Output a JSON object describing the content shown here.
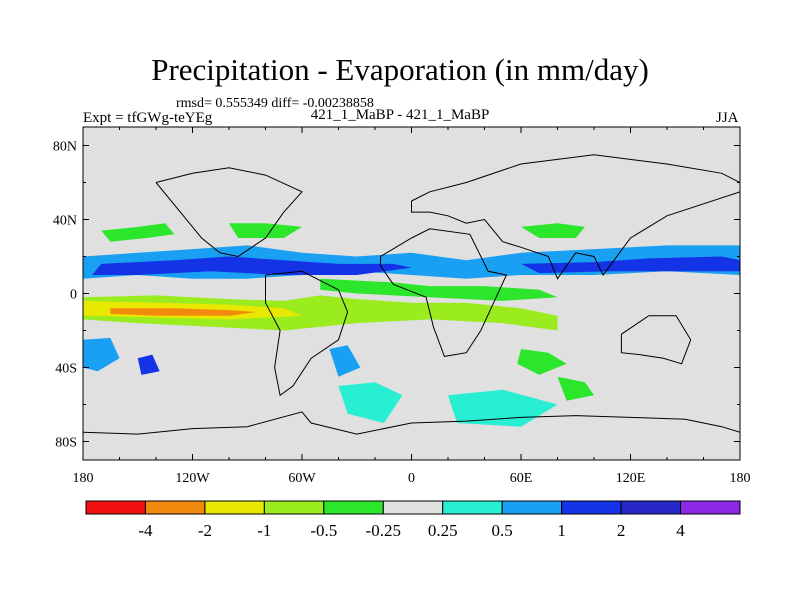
{
  "chart_data": {
    "type": "contour-map",
    "title": "Precipitation - Evaporation (in mm/day)",
    "stats_line": "rmsd= 0.555349 diff= -0.00238858",
    "experiment_label": "Expt = tfGWg-teYEg",
    "subtitle": "421_1_MaBP - 421_1_MaBP",
    "season": "JJA",
    "x_axis": {
      "range": [
        -180,
        180
      ],
      "tick_values": [
        -180,
        -120,
        -60,
        0,
        60,
        120,
        180
      ],
      "tick_labels": [
        "180",
        "120W",
        "60W",
        "0",
        "60E",
        "120E",
        "180"
      ]
    },
    "y_axis": {
      "range": [
        -90,
        90
      ],
      "tick_values": [
        80,
        40,
        0,
        -40,
        -80
      ],
      "tick_labels": [
        "80N",
        "40N",
        "0",
        "40S",
        "80S"
      ]
    },
    "background_color": "#e0e0e0",
    "colorbar": {
      "labels": [
        "-4",
        "-2",
        "-1",
        "-0.5",
        "-0.25",
        "0.25",
        "0.5",
        "1",
        "2",
        "4"
      ],
      "colors": [
        "#f20f0f",
        "#f28a0f",
        "#e8e800",
        "#9aec1e",
        "#2ce62c",
        "#e0e0e0",
        "#28eed2",
        "#1aa0f2",
        "#1432e6",
        "#2828c8",
        "#8c28e6"
      ]
    },
    "features": [
      {
        "name": "northern-blue-band",
        "color": "#1aa0f2",
        "points": [
          [
            -180,
            20
          ],
          [
            -150,
            22
          ],
          [
            -120,
            24
          ],
          [
            -90,
            26
          ],
          [
            -60,
            22
          ],
          [
            -30,
            20
          ],
          [
            0,
            22
          ],
          [
            30,
            18
          ],
          [
            60,
            22
          ],
          [
            100,
            24
          ],
          [
            140,
            26
          ],
          [
            180,
            26
          ],
          [
            180,
            10
          ],
          [
            140,
            12
          ],
          [
            100,
            10
          ],
          [
            60,
            10
          ],
          [
            30,
            8
          ],
          [
            0,
            10
          ],
          [
            -30,
            12
          ],
          [
            -60,
            10
          ],
          [
            -90,
            8
          ],
          [
            -120,
            8
          ],
          [
            -150,
            10
          ],
          [
            -180,
            8
          ]
        ]
      },
      {
        "name": "northern-dark-blue-band",
        "color": "#1432e6",
        "points": [
          [
            -170,
            16
          ],
          [
            -130,
            18
          ],
          [
            -100,
            20
          ],
          [
            -70,
            18
          ],
          [
            -40,
            16
          ],
          [
            -10,
            16
          ],
          [
            0,
            14
          ],
          [
            -30,
            10
          ],
          [
            -70,
            10
          ],
          [
            -110,
            12
          ],
          [
            -150,
            10
          ],
          [
            -175,
            10
          ]
        ]
      },
      {
        "name": "northern-dark-blue-east",
        "color": "#1432e6",
        "points": [
          [
            60,
            16
          ],
          [
            100,
            17
          ],
          [
            130,
            19
          ],
          [
            170,
            20
          ],
          [
            180,
            18
          ],
          [
            180,
            12
          ],
          [
            150,
            12
          ],
          [
            110,
            12
          ],
          [
            70,
            11
          ]
        ]
      },
      {
        "name": "tropical-yellow-band",
        "color": "#9aec1e",
        "points": [
          [
            -180,
            -2
          ],
          [
            -140,
            -1
          ],
          [
            -100,
            -3
          ],
          [
            -70,
            -4
          ],
          [
            -50,
            -1
          ],
          [
            -30,
            -3
          ],
          [
            0,
            -5
          ],
          [
            30,
            -5
          ],
          [
            60,
            -8
          ],
          [
            80,
            -12
          ],
          [
            80,
            -20
          ],
          [
            50,
            -16
          ],
          [
            10,
            -14
          ],
          [
            -30,
            -16
          ],
          [
            -70,
            -20
          ],
          [
            -110,
            -18
          ],
          [
            -150,
            -16
          ],
          [
            -180,
            -14
          ]
        ]
      },
      {
        "name": "tropical-yellow-core",
        "color": "#e8e800",
        "points": [
          [
            -180,
            -4
          ],
          [
            -140,
            -5
          ],
          [
            -100,
            -6
          ],
          [
            -70,
            -8
          ],
          [
            -60,
            -12
          ],
          [
            -100,
            -14
          ],
          [
            -140,
            -13
          ],
          [
            -180,
            -12
          ]
        ]
      },
      {
        "name": "tropical-orange-core",
        "color": "#f28a0f",
        "points": [
          [
            -165,
            -8
          ],
          [
            -130,
            -8
          ],
          [
            -100,
            -9
          ],
          [
            -85,
            -10
          ],
          [
            -100,
            -12
          ],
          [
            -140,
            -12
          ],
          [
            -165,
            -11
          ]
        ]
      },
      {
        "name": "atlantic-green-band",
        "color": "#2ce62c",
        "points": [
          [
            -50,
            8
          ],
          [
            -10,
            6
          ],
          [
            10,
            4
          ],
          [
            40,
            4
          ],
          [
            70,
            2
          ],
          [
            80,
            -2
          ],
          [
            50,
            -4
          ],
          [
            10,
            -2
          ],
          [
            -30,
            0
          ],
          [
            -50,
            2
          ]
        ]
      },
      {
        "name": "northern-green-patch-west",
        "color": "#2ce62c",
        "points": [
          [
            -170,
            34
          ],
          [
            -150,
            36
          ],
          [
            -135,
            38
          ],
          [
            -130,
            32
          ],
          [
            -145,
            30
          ],
          [
            -165,
            28
          ]
        ]
      },
      {
        "name": "northern-green-patch-central",
        "color": "#2ce62c",
        "points": [
          [
            -100,
            38
          ],
          [
            -80,
            38
          ],
          [
            -60,
            36
          ],
          [
            -70,
            30
          ],
          [
            -95,
            30
          ]
        ]
      },
      {
        "name": "northern-green-patch-east",
        "color": "#2ce62c",
        "points": [
          [
            60,
            36
          ],
          [
            80,
            38
          ],
          [
            95,
            36
          ],
          [
            90,
            30
          ],
          [
            70,
            30
          ]
        ]
      },
      {
        "name": "southern-cyan-patch-1",
        "color": "#28eed2",
        "points": [
          [
            -40,
            -50
          ],
          [
            -20,
            -48
          ],
          [
            -5,
            -55
          ],
          [
            -15,
            -70
          ],
          [
            -35,
            -65
          ]
        ]
      },
      {
        "name": "southern-cyan-patch-2",
        "color": "#28eed2",
        "points": [
          [
            20,
            -55
          ],
          [
            50,
            -52
          ],
          [
            80,
            -60
          ],
          [
            60,
            -72
          ],
          [
            25,
            -70
          ]
        ]
      },
      {
        "name": "southern-cyan-patch-3",
        "color": "#1aa0f2",
        "points": [
          [
            -45,
            -30
          ],
          [
            -35,
            -28
          ],
          [
            -28,
            -40
          ],
          [
            -40,
            -45
          ]
        ]
      },
      {
        "name": "southern-green-patch-1",
        "color": "#2ce62c",
        "points": [
          [
            60,
            -30
          ],
          [
            75,
            -32
          ],
          [
            85,
            -38
          ],
          [
            70,
            -44
          ],
          [
            58,
            -38
          ]
        ]
      },
      {
        "name": "southern-green-patch-2",
        "color": "#2ce62c",
        "points": [
          [
            80,
            -45
          ],
          [
            95,
            -48
          ],
          [
            100,
            -55
          ],
          [
            85,
            -58
          ]
        ]
      },
      {
        "name": "southwest-mixed-patch",
        "color": "#1aa0f2",
        "points": [
          [
            -180,
            -25
          ],
          [
            -165,
            -24
          ],
          [
            -160,
            -35
          ],
          [
            -172,
            -42
          ],
          [
            -180,
            -40
          ]
        ]
      },
      {
        "name": "southwest-dark-patch",
        "color": "#1432e6",
        "points": [
          [
            -150,
            -35
          ],
          [
            -142,
            -33
          ],
          [
            -138,
            -42
          ],
          [
            -148,
            -44
          ]
        ]
      }
    ],
    "coastlines": [
      {
        "name": "north-america-outline",
        "points": [
          [
            -140,
            60
          ],
          [
            -120,
            65
          ],
          [
            -100,
            68
          ],
          [
            -80,
            64
          ],
          [
            -60,
            55
          ],
          [
            -70,
            44
          ],
          [
            -80,
            30
          ],
          [
            -95,
            20
          ],
          [
            -105,
            22
          ],
          [
            -115,
            30
          ],
          [
            -125,
            42
          ],
          [
            -140,
            60
          ]
        ]
      },
      {
        "name": "south-america-outline",
        "points": [
          [
            -80,
            10
          ],
          [
            -60,
            12
          ],
          [
            -40,
            2
          ],
          [
            -35,
            -10
          ],
          [
            -40,
            -25
          ],
          [
            -55,
            -35
          ],
          [
            -65,
            -50
          ],
          [
            -72,
            -55
          ],
          [
            -75,
            -40
          ],
          [
            -72,
            -20
          ],
          [
            -80,
            -5
          ],
          [
            -80,
            10
          ]
        ]
      },
      {
        "name": "africa-outline",
        "points": [
          [
            -17,
            20
          ],
          [
            0,
            30
          ],
          [
            10,
            35
          ],
          [
            32,
            32
          ],
          [
            42,
            12
          ],
          [
            52,
            10
          ],
          [
            45,
            -5
          ],
          [
            38,
            -20
          ],
          [
            30,
            -32
          ],
          [
            18,
            -34
          ],
          [
            12,
            -18
          ],
          [
            8,
            -2
          ],
          [
            -10,
            5
          ],
          [
            -17,
            15
          ],
          [
            -17,
            20
          ]
        ]
      },
      {
        "name": "eurasia-outline",
        "points": [
          [
            0,
            50
          ],
          [
            10,
            55
          ],
          [
            30,
            60
          ],
          [
            60,
            70
          ],
          [
            100,
            75
          ],
          [
            140,
            70
          ],
          [
            170,
            65
          ],
          [
            180,
            60
          ],
          [
            180,
            55
          ],
          [
            140,
            42
          ],
          [
            120,
            30
          ],
          [
            105,
            10
          ],
          [
            100,
            20
          ],
          [
            90,
            22
          ],
          [
            80,
            8
          ],
          [
            75,
            20
          ],
          [
            60,
            25
          ],
          [
            50,
            28
          ],
          [
            40,
            40
          ],
          [
            30,
            38
          ],
          [
            20,
            42
          ],
          [
            10,
            44
          ],
          [
            0,
            44
          ],
          [
            0,
            50
          ]
        ]
      },
      {
        "name": "australia-outline",
        "points": [
          [
            115,
            -22
          ],
          [
            130,
            -12
          ],
          [
            145,
            -12
          ],
          [
            153,
            -25
          ],
          [
            148,
            -38
          ],
          [
            138,
            -35
          ],
          [
            125,
            -33
          ],
          [
            115,
            -32
          ],
          [
            115,
            -22
          ]
        ]
      },
      {
        "name": "antarctica-outline",
        "points": [
          [
            -180,
            -75
          ],
          [
            -150,
            -76
          ],
          [
            -120,
            -73
          ],
          [
            -90,
            -72
          ],
          [
            -60,
            -64
          ],
          [
            -55,
            -70
          ],
          [
            -30,
            -76
          ],
          [
            0,
            -70
          ],
          [
            30,
            -69
          ],
          [
            60,
            -67
          ],
          [
            90,
            -66
          ],
          [
            120,
            -67
          ],
          [
            150,
            -68
          ],
          [
            170,
            -72
          ],
          [
            180,
            -75
          ]
        ]
      }
    ]
  }
}
